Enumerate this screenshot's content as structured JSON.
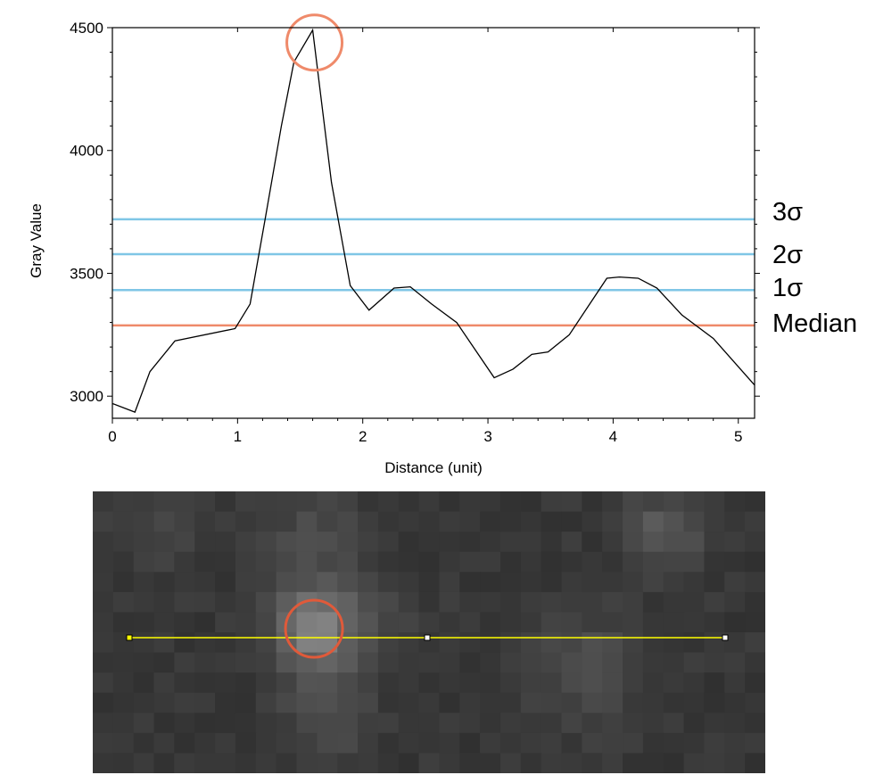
{
  "chart_data": {
    "type": "line",
    "title": "",
    "xlabel": "Distance (unit)",
    "ylabel": "Gray Value",
    "xlim": [
      0,
      5.13
    ],
    "ylim": [
      2910,
      4500
    ],
    "xticks": [
      0,
      1,
      2,
      3,
      4,
      5
    ],
    "yticks": [
      3000,
      3500,
      4000,
      4500
    ],
    "grid": false,
    "series": [
      {
        "color": "#000000",
        "x": [
          0,
          0.18,
          0.3,
          0.5,
          0.98,
          1.1,
          1.22,
          1.35,
          1.45,
          1.6,
          1.75,
          1.9,
          2.05,
          2.25,
          2.38,
          2.55,
          2.75,
          3.05,
          3.2,
          3.35,
          3.48,
          3.65,
          3.8,
          3.95,
          4.05,
          4.2,
          4.35,
          4.55,
          4.8,
          5.13
        ],
        "y": [
          2970,
          2935,
          3100,
          3225,
          3275,
          3375,
          3720,
          4100,
          4360,
          4490,
          3870,
          3450,
          3350,
          3440,
          3445,
          3375,
          3300,
          3075,
          3110,
          3170,
          3180,
          3250,
          3365,
          3480,
          3485,
          3480,
          3440,
          3330,
          3235,
          3045
        ]
      }
    ],
    "reference_lines": [
      {
        "label": "3σ",
        "y": 3720,
        "color": "#7fc6e6"
      },
      {
        "label": "2σ",
        "y": 3578,
        "color": "#7fc6e6"
      },
      {
        "label": "1σ",
        "y": 3432,
        "color": "#7fc6e6"
      },
      {
        "label": "Median",
        "y": 3288,
        "color": "#ef8a6a"
      }
    ],
    "peak_marker": {
      "x": 1.6,
      "y": 4450,
      "color": "#ef8a6a"
    }
  },
  "image_panel": {
    "line_color": "#ffff00",
    "circle_color": "#e05a3a",
    "line_points": [
      0,
      0.5,
      1
    ],
    "circle_at": 0.31
  }
}
